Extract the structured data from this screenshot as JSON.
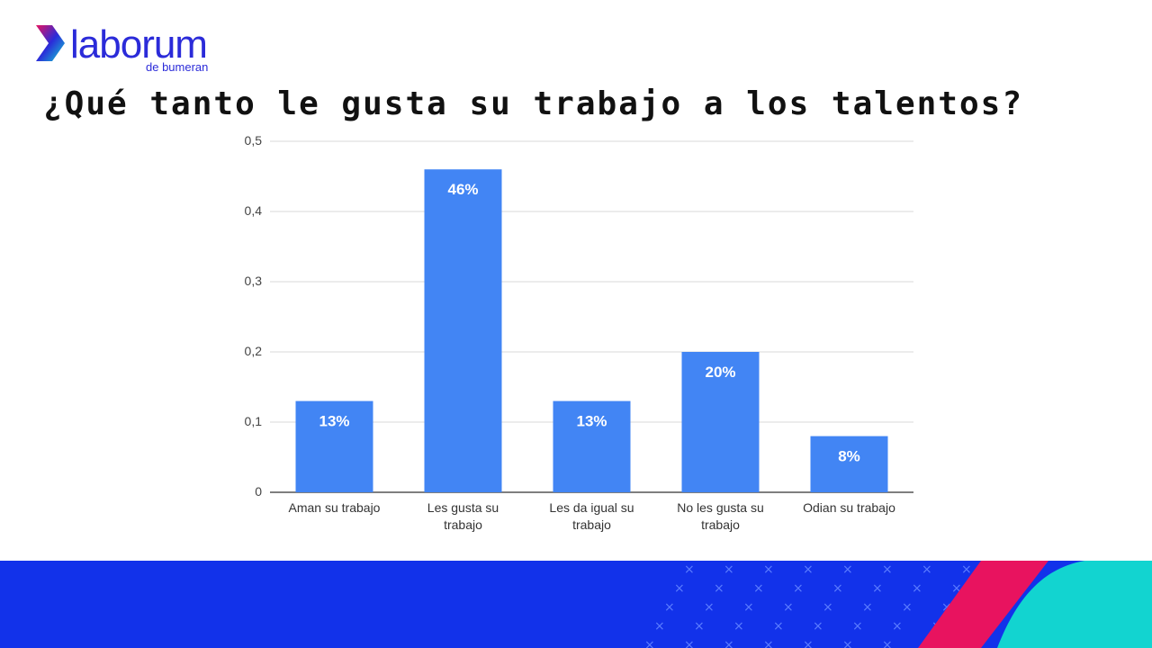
{
  "brand": {
    "name": "laborum",
    "tagline": "de bumeran",
    "colors": {
      "primary": "#2b2bd9",
      "accent_pink": "#e8135f",
      "accent_teal": "#12d4d0",
      "banner": "#1232ea"
    }
  },
  "chart_data": {
    "type": "bar",
    "title": "¿Qué tanto le gusta su trabajo a los talentos?",
    "categories": [
      "Aman su trabajo",
      "Les gusta su trabajo",
      "Les da igual su trabajo",
      "No les gusta su trabajo",
      "Odian su trabajo"
    ],
    "values": [
      0.13,
      0.46,
      0.13,
      0.2,
      0.08
    ],
    "data_labels": [
      "13%",
      "46%",
      "13%",
      "20%",
      "8%"
    ],
    "yticks": [
      "0",
      "0,1",
      "0,2",
      "0,3",
      "0,4",
      "0,5"
    ],
    "ylim": [
      0,
      0.5
    ],
    "xlabel": "",
    "ylabel": "",
    "grid": true,
    "legend": "none",
    "bar_color": "#4285f4"
  }
}
